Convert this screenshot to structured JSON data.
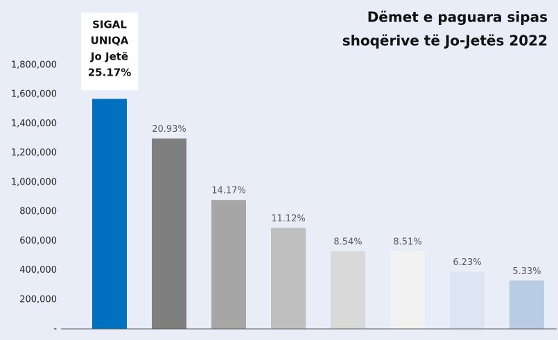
{
  "chart_data": {
    "type": "bar",
    "title_lines": [
      "Dëmet e paguara sipas",
      "shoqërive të Jo-Jetës 2022"
    ],
    "categories": [
      null,
      null,
      null,
      null,
      null,
      null,
      null,
      null
    ],
    "values": [
      1570000,
      1300000,
      880000,
      690000,
      530000,
      530000,
      390000,
      330000
    ],
    "colors": [
      "#0070c0",
      "#7f7f7f",
      "#a6a6a6",
      "#bfbfbf",
      "#d9d9d9",
      "#f2f2f2",
      "#dce6f2",
      "#b8cce4"
    ],
    "bar_labels": [
      "25.17%",
      "20.93%",
      "14.17%",
      "11.12%",
      "8.54%",
      "8.51%",
      "6.23%",
      "5.33%"
    ],
    "callout_lines": [
      "SIGAL",
      "UNIQA",
      "Jo Jetë"
    ],
    "ylim": [
      0,
      1800000
    ],
    "yticks": [
      {
        "value": 0,
        "label": "-"
      },
      {
        "value": 200000,
        "label": "200,000"
      },
      {
        "value": 400000,
        "label": "400,000"
      },
      {
        "value": 600000,
        "label": "600,000"
      },
      {
        "value": 800000,
        "label": "800,000"
      },
      {
        "value": 1000000,
        "label": "1,000,000"
      },
      {
        "value": 1200000,
        "label": "1,200,000"
      },
      {
        "value": 1400000,
        "label": "1,400,000"
      },
      {
        "value": 1600000,
        "label": "1,600,000"
      },
      {
        "value": 1800000,
        "label": "1,800,000"
      }
    ]
  }
}
